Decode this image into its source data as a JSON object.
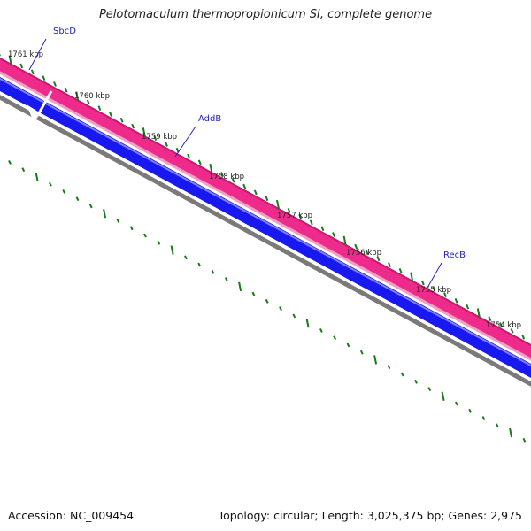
{
  "title": "Pelotomaculum thermopropionicum SI, complete genome",
  "footer": {
    "accession": "Accession: NC_009454",
    "summary": "Topology: circular; Length: 3,025,375 bp; Genes: 2,975"
  },
  "colors": {
    "forward_strand": "#ee2a8a",
    "forward_highlight": "#f0a0c8",
    "reverse_strand": "#1818f0",
    "backbone": "#7a7a7a",
    "ticks": "#1a7a1a",
    "gene_label": "#2222bb"
  },
  "ruler": {
    "labels": [
      "1761 kbp",
      "1760 kbp",
      "1759 kbp",
      "1758 kbp",
      "1757 kbp",
      "1756 kbp",
      "1755 kbp",
      "1754 kbp"
    ]
  },
  "genes": [
    {
      "name": "SbcD"
    },
    {
      "name": "AddB"
    },
    {
      "name": "RecB"
    }
  ]
}
